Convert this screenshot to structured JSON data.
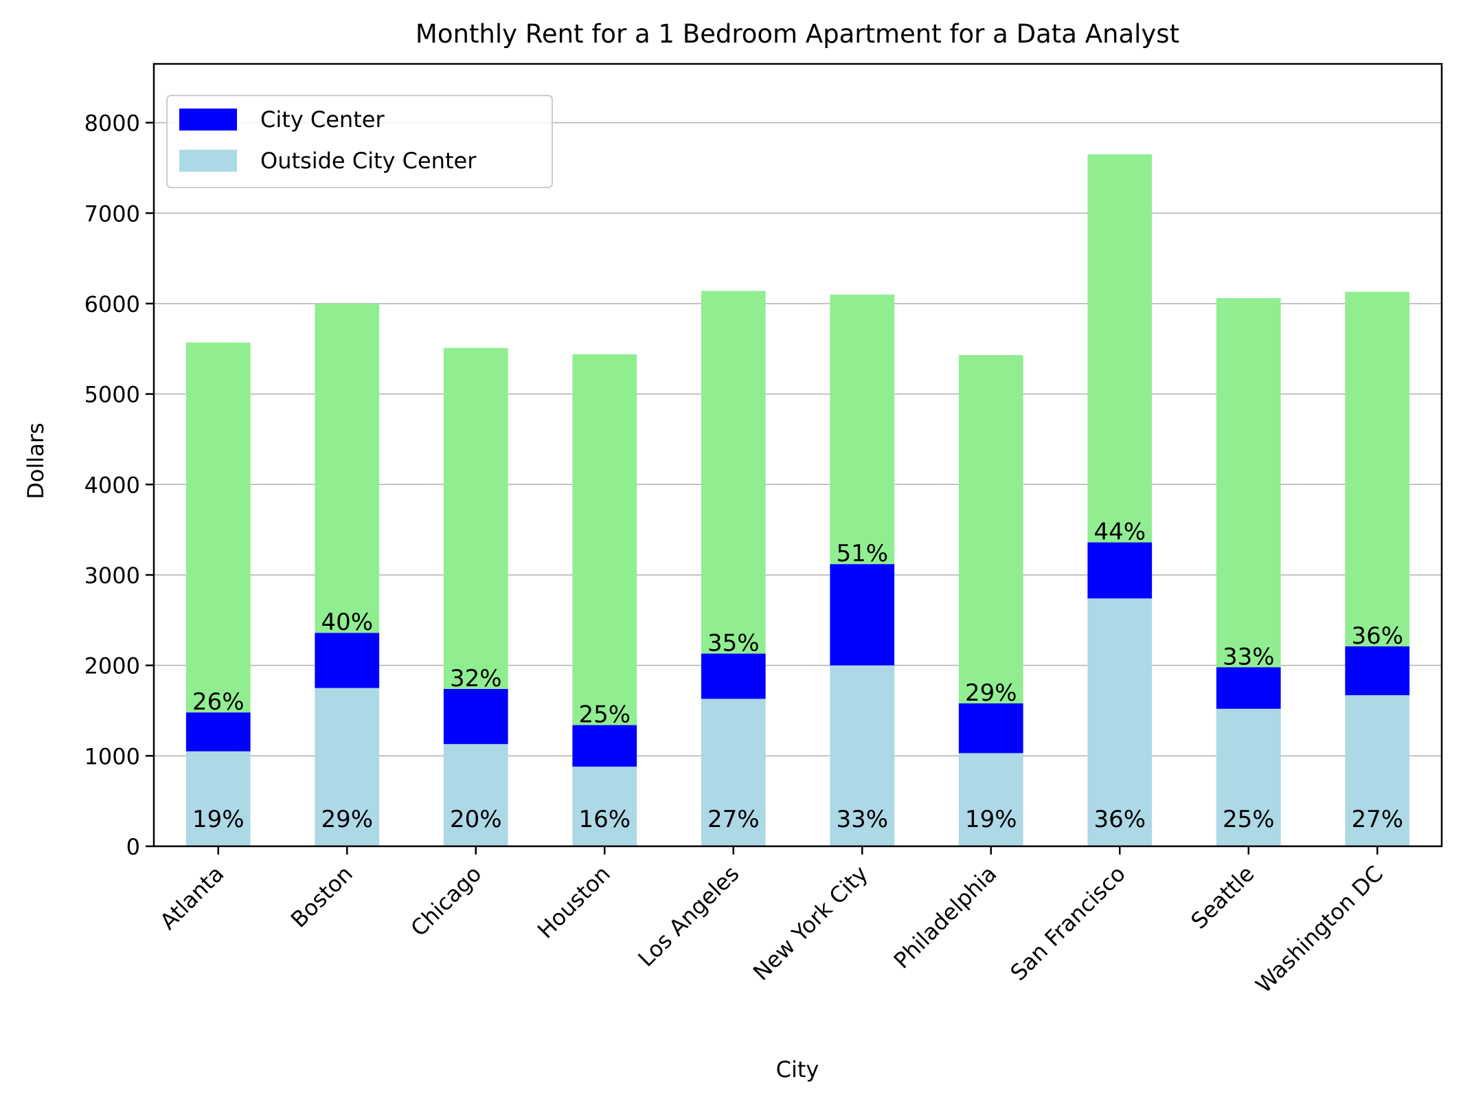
{
  "chart_data": {
    "type": "bar",
    "stacked": true,
    "title": "Monthly Rent for a 1 Bedroom Apartment for a Data Analyst",
    "xlabel": "City",
    "ylabel": "Dollars",
    "ylim": [
      0,
      8650
    ],
    "yticks": [
      0,
      1000,
      2000,
      3000,
      4000,
      5000,
      6000,
      7000,
      8000
    ],
    "grid": "horizontal",
    "legend_position": "top-left",
    "categories": [
      "Atlanta",
      "Boston",
      "Chicago",
      "Houston",
      "Los Angeles",
      "New York City",
      "Philadelphia",
      "San Francisco",
      "Seattle",
      "Washington DC"
    ],
    "series": [
      {
        "name": "Outside City Center",
        "color": "#add8e6",
        "values": [
          1050,
          1750,
          1130,
          880,
          1630,
          2000,
          1030,
          2740,
          1520,
          1670
        ],
        "labels": [
          "19%",
          "29%",
          "20%",
          "16%",
          "27%",
          "33%",
          "19%",
          "36%",
          "25%",
          "27%"
        ]
      },
      {
        "name": "City Center",
        "color": "#0000ff",
        "values": [
          430,
          610,
          610,
          460,
          500,
          1120,
          550,
          620,
          460,
          540
        ],
        "labels": [
          "26%",
          "40%",
          "32%",
          "25%",
          "35%",
          "51%",
          "29%",
          "44%",
          "33%",
          "36%"
        ]
      },
      {
        "color": "#90ee90",
        "values": [
          4090,
          3640,
          3770,
          4100,
          4010,
          2980,
          3850,
          4290,
          4080,
          3920
        ]
      }
    ]
  }
}
